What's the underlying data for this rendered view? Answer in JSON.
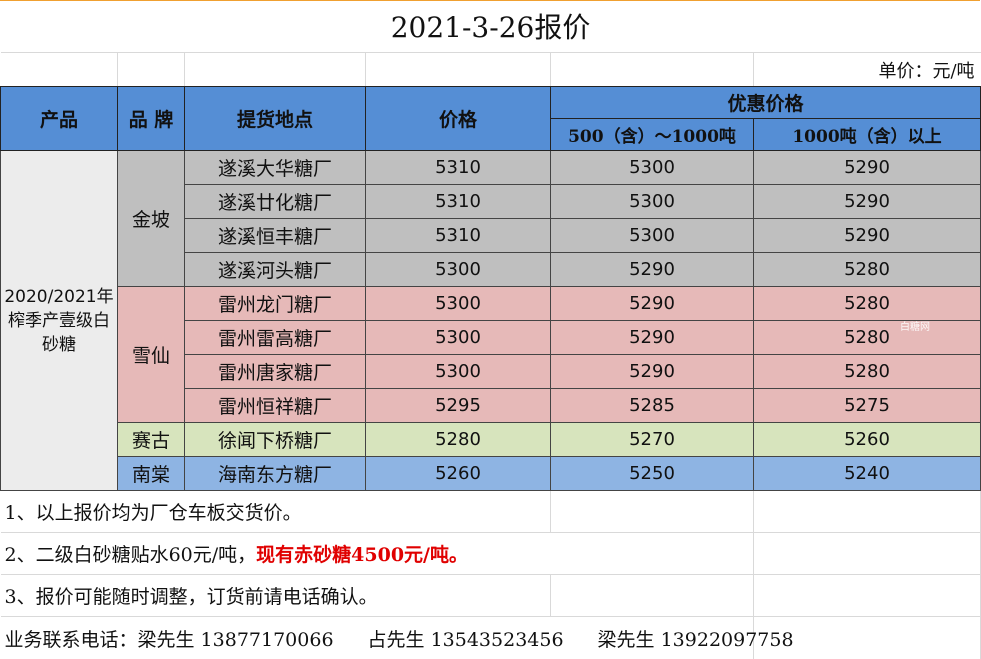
{
  "title": "2021-3-26报价",
  "unit": "单价：元/吨",
  "headers": {
    "product": "产品",
    "brand": "品  牌",
    "location": "提货地点",
    "price": "价格",
    "discount": "优惠价格",
    "tier1": "500（含）～1000吨",
    "tier2": "1000吨（含）以上"
  },
  "product": "2020/2021年榨季产壹级白砂糖",
  "brands": {
    "jinpo": "金坡",
    "xuexian": "雪仙",
    "saigu": "赛古",
    "nantang": "南棠"
  },
  "rows": [
    {
      "location": "遂溪大华糖厂",
      "price": "5310",
      "tier1": "5300",
      "tier2": "5290"
    },
    {
      "location": "遂溪廿化糖厂",
      "price": "5310",
      "tier1": "5300",
      "tier2": "5290"
    },
    {
      "location": "遂溪恒丰糖厂",
      "price": "5310",
      "tier1": "5300",
      "tier2": "5290"
    },
    {
      "location": "遂溪河头糖厂",
      "price": "5300",
      "tier1": "5290",
      "tier2": "5280"
    },
    {
      "location": "雷州龙门糖厂",
      "price": "5300",
      "tier1": "5290",
      "tier2": "5280"
    },
    {
      "location": "雷州雷高糖厂",
      "price": "5300",
      "tier1": "5290",
      "tier2": "5280"
    },
    {
      "location": "雷州唐家糖厂",
      "price": "5300",
      "tier1": "5290",
      "tier2": "5280"
    },
    {
      "location": "雷州恒祥糖厂",
      "price": "5295",
      "tier1": "5285",
      "tier2": "5275"
    },
    {
      "location": "徐闻下桥糖厂",
      "price": "5280",
      "tier1": "5270",
      "tier2": "5260"
    },
    {
      "location": "海南东方糖厂",
      "price": "5260",
      "tier1": "5250",
      "tier2": "5240"
    }
  ],
  "notes": {
    "n1": "1、以上报价均为厂仓车板交货价。",
    "n2_prefix": "2、二级白砂糖贴水60元/吨，",
    "n2_highlight": "现有赤砂糖4500元/吨。",
    "n3": "3、报价可能随时调整，订货前请电话确认。"
  },
  "contact": {
    "label": "业务联系电话：",
    "c1": "梁先生  13877170066",
    "c2": "占先生  13543523456",
    "c3": "梁先生  13922097758"
  },
  "watermark": "白糖网",
  "colors": {
    "header": "#558ed5",
    "jinpo": "#bfbfbf",
    "xuexian": "#e6b9b8",
    "saigu": "#d7e4bd",
    "nantang": "#8eb4e3",
    "highlight": "#e00000"
  }
}
